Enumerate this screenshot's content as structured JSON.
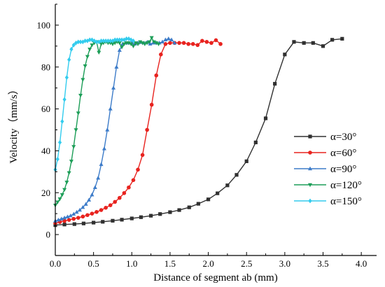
{
  "chart_data": {
    "type": "line",
    "xlabel": "Distance of segment ab (mm)",
    "ylabel": "Velocity（mm/s）",
    "xlim": [
      0,
      4.2
    ],
    "ylim": [
      -10,
      110
    ],
    "xticks": [
      0.0,
      0.5,
      1.0,
      1.5,
      2.0,
      2.5,
      3.0,
      3.5,
      4.0
    ],
    "xtick_labels": [
      "0.0",
      "0.5",
      "1.0",
      "1.5",
      "2.0",
      "2.5",
      "3.0",
      "3.5",
      "4.0"
    ],
    "yticks": [
      0,
      20,
      40,
      60,
      80,
      100
    ],
    "ytick_labels": [
      "0",
      "20",
      "40",
      "60",
      "80",
      "100"
    ],
    "grid": false,
    "legend_position": "right",
    "series": [
      {
        "name": "α=30°",
        "color": "#303030",
        "marker": "square",
        "x": [
          0,
          0.12,
          0.25,
          0.37,
          0.5,
          0.62,
          0.75,
          0.87,
          1.0,
          1.12,
          1.25,
          1.37,
          1.5,
          1.62,
          1.75,
          1.87,
          2.0,
          2.12,
          2.25,
          2.37,
          2.5,
          2.62,
          2.75,
          2.87,
          3.0,
          3.12,
          3.25,
          3.37,
          3.5,
          3.62,
          3.75
        ],
        "y": [
          4.5,
          4.8,
          5.0,
          5.3,
          5.7,
          6.1,
          6.6,
          7.1,
          7.7,
          8.3,
          9.0,
          9.8,
          10.7,
          11.7,
          13.0,
          14.7,
          16.8,
          19.7,
          23.5,
          28.5,
          35.0,
          44.0,
          55.5,
          72.0,
          86.0,
          92.0,
          91.5,
          91.5,
          90.0,
          93.0,
          93.5
        ]
      },
      {
        "name": "α=60°",
        "color": "#e8231f",
        "marker": "circle",
        "x": [
          0,
          0.06,
          0.12,
          0.18,
          0.24,
          0.3,
          0.36,
          0.42,
          0.48,
          0.54,
          0.6,
          0.66,
          0.72,
          0.78,
          0.84,
          0.9,
          0.96,
          1.02,
          1.08,
          1.14,
          1.2,
          1.26,
          1.32,
          1.38,
          1.44,
          1.5,
          1.56,
          1.62,
          1.68,
          1.74,
          1.8,
          1.86,
          1.92,
          1.98,
          2.04,
          2.1,
          2.16
        ],
        "y": [
          5.5,
          6.0,
          6.5,
          7.0,
          7.5,
          8.0,
          8.6,
          9.3,
          10.0,
          10.8,
          11.7,
          12.8,
          14.0,
          15.6,
          17.5,
          19.8,
          22.5,
          26.0,
          31.0,
          38.0,
          50.0,
          62.0,
          76.0,
          86.0,
          91.0,
          91.5,
          91.5,
          91.5,
          91.5,
          91.0,
          91.0,
          90.5,
          92.5,
          92.0,
          91.5,
          92.8,
          91.0
        ]
      },
      {
        "name": "α=90°",
        "color": "#3d7cc9",
        "marker": "triangle-up",
        "x": [
          0,
          0.04,
          0.08,
          0.12,
          0.16,
          0.2,
          0.24,
          0.28,
          0.32,
          0.36,
          0.4,
          0.44,
          0.48,
          0.52,
          0.56,
          0.6,
          0.64,
          0.68,
          0.72,
          0.76,
          0.8,
          0.84,
          0.88,
          0.92,
          0.96,
          1.0,
          1.04,
          1.08,
          1.12,
          1.16,
          1.2,
          1.24,
          1.28,
          1.32,
          1.36,
          1.4,
          1.44,
          1.48,
          1.52,
          1.56
        ],
        "y": [
          6.5,
          7.0,
          7.5,
          8.0,
          8.5,
          9.0,
          9.8,
          10.7,
          11.7,
          13.0,
          14.5,
          16.5,
          19.0,
          22.5,
          27.0,
          33.5,
          41.0,
          50.0,
          60.0,
          70.0,
          80.0,
          88.0,
          91.0,
          91.5,
          91.5,
          91.5,
          91.0,
          91.5,
          91.8,
          91.5,
          91.8,
          91.0,
          91.5,
          91.5,
          91.5,
          92.0,
          93.0,
          93.5,
          93.0,
          91.5
        ]
      },
      {
        "name": "α=120°",
        "color": "#1d9e58",
        "marker": "triangle-down",
        "x": [
          0,
          0.03,
          0.06,
          0.09,
          0.12,
          0.15,
          0.18,
          0.21,
          0.24,
          0.27,
          0.3,
          0.33,
          0.36,
          0.39,
          0.42,
          0.45,
          0.48,
          0.51,
          0.54,
          0.57,
          0.6,
          0.63,
          0.66,
          0.69,
          0.72,
          0.75,
          0.78,
          0.81,
          0.84,
          0.87,
          0.9,
          0.93,
          0.96,
          0.99,
          1.02,
          1.05,
          1.08,
          1.11,
          1.14,
          1.17,
          1.2,
          1.23,
          1.26,
          1.29,
          1.32,
          1.35
        ],
        "y": [
          14.0,
          15.5,
          17.0,
          19.0,
          21.5,
          25.0,
          29.5,
          35.0,
          42.0,
          50.0,
          58.0,
          66.5,
          74.0,
          80.5,
          85.0,
          88.5,
          90.5,
          91.5,
          92.0,
          87.0,
          91.0,
          91.5,
          92.0,
          91.5,
          91.5,
          91.0,
          91.5,
          92.0,
          91.5,
          89.5,
          91.0,
          91.5,
          91.5,
          91.0,
          90.0,
          91.5,
          91.0,
          92.0,
          91.5,
          91.0,
          91.5,
          92.0,
          94.0,
          92.0,
          91.5,
          91.0
        ]
      },
      {
        "name": "α=150°",
        "color": "#33ccee",
        "marker": "diamond",
        "x": [
          0,
          0.03,
          0.06,
          0.09,
          0.12,
          0.15,
          0.18,
          0.21,
          0.24,
          0.27,
          0.3,
          0.33,
          0.36,
          0.39,
          0.42,
          0.45,
          0.48,
          0.51,
          0.54,
          0.57,
          0.6,
          0.63,
          0.66,
          0.69,
          0.72,
          0.75,
          0.78,
          0.81,
          0.84,
          0.87,
          0.9,
          0.93,
          0.96,
          0.99,
          1.02
        ],
        "y": [
          31.0,
          36.0,
          44.0,
          54.0,
          64.5,
          75.0,
          83.5,
          88.5,
          90.5,
          91.5,
          92.0,
          92.0,
          92.0,
          92.5,
          92.5,
          93.0,
          93.0,
          92.5,
          92.0,
          92.0,
          92.5,
          92.5,
          92.5,
          92.5,
          92.5,
          92.5,
          93.0,
          93.0,
          93.0,
          93.0,
          93.0,
          93.5,
          93.5,
          93.0,
          92.5
        ]
      }
    ]
  }
}
